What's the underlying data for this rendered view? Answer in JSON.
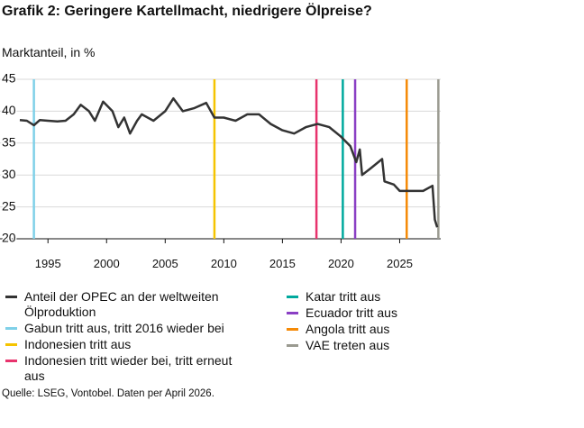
{
  "chart_data": {
    "type": "line",
    "title": "Grafik 2: Geringere Kartellmacht, niedrigere Ölpreise?",
    "y_label": "Marktanteil, in %",
    "source": "Quelle: LSEG, Vontobel. Daten per April 2026.",
    "xlim": [
      1992.6,
      2028.5
    ],
    "xticks": [
      1995,
      2000,
      2005,
      2010,
      2015,
      2020,
      2025
    ],
    "ylim": [
      20,
      45
    ],
    "yticks": [
      20,
      25,
      30,
      35,
      40,
      45
    ],
    "grid": true,
    "series": [
      {
        "name": "Anteil der OPEC an der weltweiten Ölproduktion",
        "color": "#333333",
        "x": [
          1992.6,
          1993.2,
          1993.8,
          1994.3,
          1995,
          1995.8,
          1996.5,
          1997.2,
          1997.8,
          1998.5,
          1999,
          1999.7,
          2000.5,
          2001,
          2001.5,
          2002,
          2002.6,
          2003,
          2004,
          2005,
          2005.7,
          2006.5,
          2007.5,
          2008.5,
          2009.2,
          2010,
          2011,
          2012,
          2013,
          2014,
          2015,
          2016,
          2017,
          2018,
          2019,
          2020,
          2020.8,
          2021.3,
          2021.6,
          2021.8,
          2022.5,
          2023.5,
          2023.7,
          2024.5,
          2025,
          2026,
          2027,
          2027.8,
          2028,
          2028.2
        ],
        "values": [
          38.6,
          38.5,
          37.8,
          38.6,
          38.5,
          38.4,
          38.5,
          39.5,
          41,
          40,
          38.5,
          41.5,
          40,
          37.5,
          39,
          36.5,
          38.5,
          39.5,
          38.5,
          40,
          42,
          40,
          40.5,
          41.3,
          39,
          39,
          38.5,
          39.5,
          39.5,
          38,
          37,
          36.5,
          37.5,
          38,
          37.5,
          36,
          34.5,
          32,
          34,
          30,
          31,
          32.5,
          29,
          28.5,
          27.5,
          27.5,
          27.5,
          28.3,
          23,
          21.8
        ]
      }
    ],
    "events": [
      {
        "name": "Gabun tritt aus, tritt 2016 wieder bei",
        "color": "#7fd0e8",
        "x": 1993.8
      },
      {
        "name": "Indonesien tritt aus",
        "color": "#f5c400",
        "x": 2009.2
      },
      {
        "name": "Indonesien tritt wieder bei, tritt erneut aus",
        "color": "#e8336d",
        "x": 2017.9
      },
      {
        "name": "Katar tritt aus",
        "color": "#00a99d",
        "x": 2020.15
      },
      {
        "name": "Ecuador tritt aus",
        "color": "#8a3fc4",
        "x": 2021.2
      },
      {
        "name": "Angola tritt aus",
        "color": "#f58a07",
        "x": 2025.6
      },
      {
        "name": "VAE treten aus",
        "color": "#9a9a90",
        "x": 2028.3
      }
    ]
  }
}
